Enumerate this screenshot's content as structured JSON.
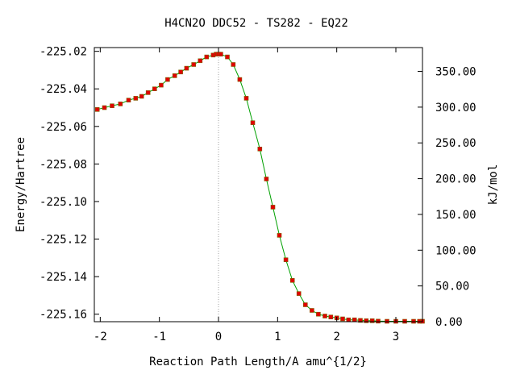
{
  "chart_data": {
    "type": "scatter",
    "title": "H4CN2O   DDC52 - TS282 - EQ22",
    "xlabel": "Reaction Path Length/A amu^{1/2}",
    "ylabel": "Energy/Hartree",
    "y2label": "kJ/mol",
    "xlim": [
      -2.1,
      3.45
    ],
    "ylim": [
      -225.164,
      -225.018
    ],
    "y2lim": [
      0.0,
      383.3
    ],
    "x_ticks": [
      "-2",
      "-1",
      "0",
      "1",
      "2",
      "3"
    ],
    "x_tick_values": [
      -2,
      -1,
      0,
      1,
      2,
      3
    ],
    "y_ticks": [
      "-225.02",
      "-225.04",
      "-225.06",
      "-225.08",
      "-225.10",
      "-225.12",
      "-225.14",
      "-225.16"
    ],
    "y_tick_values": [
      -225.02,
      -225.04,
      -225.06,
      -225.08,
      -225.1,
      -225.12,
      -225.14,
      -225.16
    ],
    "y2_ticks": [
      "0.00",
      "50.00",
      "100.00",
      "150.00",
      "200.00",
      "250.00",
      "300.00",
      "350.00"
    ],
    "y2_tick_values": [
      0,
      50,
      100,
      150,
      200,
      250,
      300,
      350
    ],
    "ts_marker_x": 0,
    "grid": false,
    "colors": {
      "line": "#00a000",
      "marker": "#e00000",
      "marker_edge": "#806000",
      "ts_line": "#a0a0a0"
    },
    "series": [
      {
        "x": [
          -2.05,
          -1.93,
          -1.8,
          -1.66,
          -1.52,
          -1.4,
          -1.3,
          -1.19,
          -1.08,
          -0.97,
          -0.86,
          -0.74,
          -0.64,
          -0.54,
          -0.42,
          -0.31,
          -0.2,
          -0.09,
          -0.04,
          0.0,
          0.04,
          0.15,
          0.25,
          0.36,
          0.47,
          0.58,
          0.7,
          0.81,
          0.92,
          1.03,
          1.14,
          1.25,
          1.36,
          1.47,
          1.58,
          1.69,
          1.8,
          1.9,
          2.0,
          2.1,
          2.2,
          2.3,
          2.4,
          2.5,
          2.6,
          2.7,
          2.85,
          3.0,
          3.15,
          3.3,
          3.4,
          3.45
        ],
        "y": [
          -225.051,
          -225.05,
          -225.049,
          -225.048,
          -225.046,
          -225.045,
          -225.044,
          -225.042,
          -225.04,
          -225.038,
          -225.035,
          -225.033,
          -225.031,
          -225.029,
          -225.027,
          -225.025,
          -225.023,
          -225.022,
          -225.0215,
          -225.0215,
          -225.0215,
          -225.023,
          -225.027,
          -225.035,
          -225.045,
          -225.058,
          -225.072,
          -225.088,
          -225.103,
          -225.118,
          -225.131,
          -225.142,
          -225.149,
          -225.155,
          -225.158,
          -225.16,
          -225.161,
          -225.1615,
          -225.162,
          -225.1625,
          -225.163,
          -225.163,
          -225.1633,
          -225.1635,
          -225.1635,
          -225.1637,
          -225.1638,
          -225.1638,
          -225.1638,
          -225.1638,
          -225.1638,
          -225.1638
        ]
      }
    ]
  }
}
